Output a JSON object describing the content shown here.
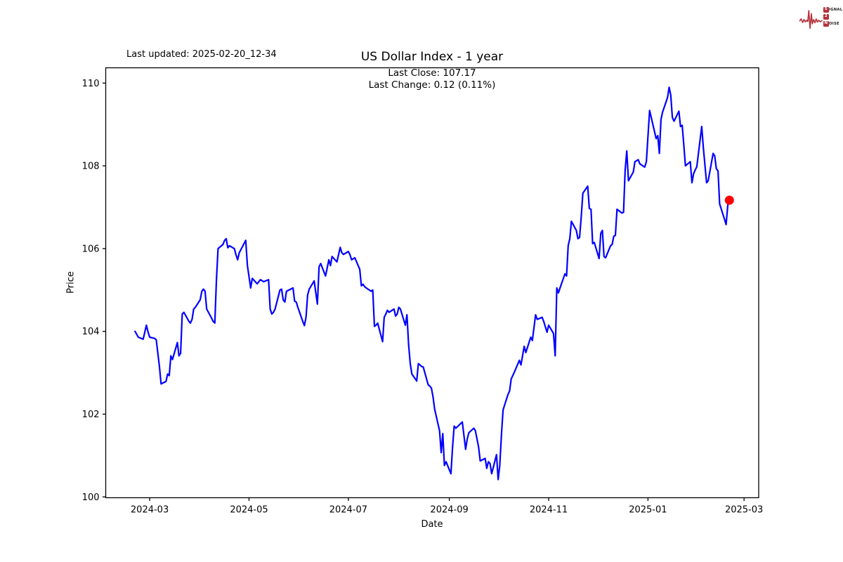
{
  "page": {
    "background": "#ffffff"
  },
  "header": {
    "last_updated": "Last updated: 2025-02-20_12-34",
    "title": "US Dollar Index - 1 year",
    "subtitle_line1": "Last Close: 107.17",
    "subtitle_line2": "Last Change: 0.12 (0.11%)"
  },
  "logo": {
    "accent": "#b5323c",
    "row1_initial": "S",
    "row1_rest": "IGNAL",
    "row2_initial": "2",
    "row2_rest": "",
    "row3_initial": "N",
    "row3_rest": "OISE"
  },
  "chart_data": {
    "type": "line",
    "title": "US Dollar Index - 1 year",
    "xlabel": "Date",
    "ylabel": "Price",
    "grid": false,
    "legend": "none",
    "line_color": "#0000ff",
    "marker_color": "#ff0000",
    "frame_color": "#000000",
    "xlim": [
      "2024-02-03",
      "2025-03-10"
    ],
    "ylim": [
      99.98,
      110.37
    ],
    "y_ticks": [
      100,
      102,
      104,
      106,
      108,
      110
    ],
    "x_ticks": [
      {
        "date": "2024-03-01",
        "label": "2024-03"
      },
      {
        "date": "2024-05-01",
        "label": "2024-05"
      },
      {
        "date": "2024-07-01",
        "label": "2024-07"
      },
      {
        "date": "2024-09-01",
        "label": "2024-09"
      },
      {
        "date": "2024-11-01",
        "label": "2024-11"
      },
      {
        "date": "2025-01-01",
        "label": "2025-01"
      },
      {
        "date": "2025-03-01",
        "label": "2025-03"
      }
    ],
    "last_point": {
      "date": "2025-02-20",
      "price": 107.17
    },
    "series": [
      {
        "name": "US Dollar Index",
        "points": [
          [
            "2024-02-21",
            104.0
          ],
          [
            "2024-02-23",
            103.86
          ],
          [
            "2024-02-26",
            103.81
          ],
          [
            "2024-02-28",
            104.15
          ],
          [
            "2024-02-29",
            103.98
          ],
          [
            "2024-03-01",
            103.86
          ],
          [
            "2024-03-04",
            103.83
          ],
          [
            "2024-03-05",
            103.8
          ],
          [
            "2024-03-06",
            103.47
          ],
          [
            "2024-03-07",
            103.14
          ],
          [
            "2024-03-08",
            102.73
          ],
          [
            "2024-03-11",
            102.79
          ],
          [
            "2024-03-12",
            102.97
          ],
          [
            "2024-03-13",
            102.93
          ],
          [
            "2024-03-14",
            103.41
          ],
          [
            "2024-03-15",
            103.32
          ],
          [
            "2024-03-18",
            103.73
          ],
          [
            "2024-03-19",
            103.41
          ],
          [
            "2024-03-20",
            103.47
          ],
          [
            "2024-03-21",
            104.42
          ],
          [
            "2024-03-22",
            104.46
          ],
          [
            "2024-03-25",
            104.25
          ],
          [
            "2024-03-26",
            104.2
          ],
          [
            "2024-03-27",
            104.29
          ],
          [
            "2024-03-28",
            104.54
          ],
          [
            "2024-03-29",
            104.58
          ],
          [
            "2024-04-01",
            104.76
          ],
          [
            "2024-04-02",
            104.97
          ],
          [
            "2024-04-03",
            105.02
          ],
          [
            "2024-04-04",
            104.97
          ],
          [
            "2024-04-05",
            104.54
          ],
          [
            "2024-04-08",
            104.32
          ],
          [
            "2024-04-09",
            104.24
          ],
          [
            "2024-04-10",
            104.2
          ],
          [
            "2024-04-11",
            105.25
          ],
          [
            "2024-04-12",
            106.0
          ],
          [
            "2024-04-15",
            106.1
          ],
          [
            "2024-04-16",
            106.2
          ],
          [
            "2024-04-17",
            106.24
          ],
          [
            "2024-04-18",
            106.02
          ],
          [
            "2024-04-19",
            106.07
          ],
          [
            "2024-04-22",
            106.0
          ],
          [
            "2024-04-23",
            105.85
          ],
          [
            "2024-04-24",
            105.73
          ],
          [
            "2024-04-25",
            105.9
          ],
          [
            "2024-04-29",
            106.2
          ],
          [
            "2024-04-30",
            105.59
          ],
          [
            "2024-05-02",
            105.05
          ],
          [
            "2024-05-03",
            105.28
          ],
          [
            "2024-05-06",
            105.15
          ],
          [
            "2024-05-08",
            105.25
          ],
          [
            "2024-05-10",
            105.2
          ],
          [
            "2024-05-13",
            105.25
          ],
          [
            "2024-05-14",
            104.54
          ],
          [
            "2024-05-15",
            104.42
          ],
          [
            "2024-05-16",
            104.46
          ],
          [
            "2024-05-17",
            104.54
          ],
          [
            "2024-05-20",
            105.0
          ],
          [
            "2024-05-21",
            105.02
          ],
          [
            "2024-05-22",
            104.76
          ],
          [
            "2024-05-23",
            104.71
          ],
          [
            "2024-05-24",
            104.97
          ],
          [
            "2024-05-28",
            105.05
          ],
          [
            "2024-05-29",
            104.73
          ],
          [
            "2024-05-30",
            104.71
          ],
          [
            "2024-05-31",
            104.58
          ],
          [
            "2024-06-03",
            104.24
          ],
          [
            "2024-06-04",
            104.14
          ],
          [
            "2024-06-05",
            104.34
          ],
          [
            "2024-06-06",
            104.88
          ],
          [
            "2024-06-07",
            105.02
          ],
          [
            "2024-06-10",
            105.22
          ],
          [
            "2024-06-12",
            104.66
          ],
          [
            "2024-06-13",
            105.56
          ],
          [
            "2024-06-14",
            105.64
          ],
          [
            "2024-06-17",
            105.34
          ],
          [
            "2024-06-18",
            105.53
          ],
          [
            "2024-06-19",
            105.73
          ],
          [
            "2024-06-20",
            105.59
          ],
          [
            "2024-06-21",
            105.81
          ],
          [
            "2024-06-24",
            105.68
          ],
          [
            "2024-06-25",
            105.86
          ],
          [
            "2024-06-26",
            106.03
          ],
          [
            "2024-06-27",
            105.9
          ],
          [
            "2024-06-28",
            105.86
          ],
          [
            "2024-07-01",
            105.93
          ],
          [
            "2024-07-02",
            105.85
          ],
          [
            "2024-07-03",
            105.73
          ],
          [
            "2024-07-05",
            105.78
          ],
          [
            "2024-07-08",
            105.5
          ],
          [
            "2024-07-09",
            105.1
          ],
          [
            "2024-07-10",
            105.14
          ],
          [
            "2024-07-11",
            105.08
          ],
          [
            "2024-07-12",
            105.05
          ],
          [
            "2024-07-15",
            104.97
          ],
          [
            "2024-07-16",
            105.0
          ],
          [
            "2024-07-17",
            104.12
          ],
          [
            "2024-07-18",
            104.15
          ],
          [
            "2024-07-19",
            104.2
          ],
          [
            "2024-07-22",
            103.75
          ],
          [
            "2024-07-23",
            104.34
          ],
          [
            "2024-07-24",
            104.42
          ],
          [
            "2024-07-25",
            104.51
          ],
          [
            "2024-07-26",
            104.46
          ],
          [
            "2024-07-29",
            104.54
          ],
          [
            "2024-07-30",
            104.37
          ],
          [
            "2024-07-31",
            104.42
          ],
          [
            "2024-08-01",
            104.58
          ],
          [
            "2024-08-02",
            104.54
          ],
          [
            "2024-08-05",
            104.15
          ],
          [
            "2024-08-06",
            104.4
          ],
          [
            "2024-08-07",
            103.69
          ],
          [
            "2024-08-08",
            103.22
          ],
          [
            "2024-08-09",
            102.97
          ],
          [
            "2024-08-12",
            102.8
          ],
          [
            "2024-08-13",
            103.22
          ],
          [
            "2024-08-14",
            103.19
          ],
          [
            "2024-08-15",
            103.15
          ],
          [
            "2024-08-16",
            103.14
          ],
          [
            "2024-08-19",
            102.71
          ],
          [
            "2024-08-20",
            102.68
          ],
          [
            "2024-08-21",
            102.63
          ],
          [
            "2024-08-22",
            102.42
          ],
          [
            "2024-08-23",
            102.12
          ],
          [
            "2024-08-26",
            101.6
          ],
          [
            "2024-08-27",
            101.07
          ],
          [
            "2024-08-28",
            101.53
          ],
          [
            "2024-08-29",
            100.76
          ],
          [
            "2024-08-30",
            100.85
          ],
          [
            "2024-09-02",
            100.56
          ],
          [
            "2024-09-03",
            101.2
          ],
          [
            "2024-09-04",
            101.71
          ],
          [
            "2024-09-05",
            101.66
          ],
          [
            "2024-09-09",
            101.81
          ],
          [
            "2024-09-11",
            101.15
          ],
          [
            "2024-09-12",
            101.4
          ],
          [
            "2024-09-13",
            101.55
          ],
          [
            "2024-09-16",
            101.66
          ],
          [
            "2024-09-17",
            101.6
          ],
          [
            "2024-09-19",
            101.2
          ],
          [
            "2024-09-20",
            100.87
          ],
          [
            "2024-09-23",
            100.93
          ],
          [
            "2024-09-24",
            100.69
          ],
          [
            "2024-09-25",
            100.85
          ],
          [
            "2024-09-26",
            100.81
          ],
          [
            "2024-09-27",
            100.56
          ],
          [
            "2024-09-30",
            101.02
          ],
          [
            "2024-10-01",
            100.42
          ],
          [
            "2024-10-02",
            100.76
          ],
          [
            "2024-10-03",
            101.5
          ],
          [
            "2024-10-04",
            102.1
          ],
          [
            "2024-10-07",
            102.47
          ],
          [
            "2024-10-08",
            102.56
          ],
          [
            "2024-10-09",
            102.85
          ],
          [
            "2024-10-11",
            103.02
          ],
          [
            "2024-10-14",
            103.3
          ],
          [
            "2024-10-15",
            103.19
          ],
          [
            "2024-10-17",
            103.64
          ],
          [
            "2024-10-18",
            103.49
          ],
          [
            "2024-10-21",
            103.86
          ],
          [
            "2024-10-22",
            103.78
          ],
          [
            "2024-10-24",
            104.4
          ],
          [
            "2024-10-25",
            104.29
          ],
          [
            "2024-10-28",
            104.34
          ],
          [
            "2024-10-29",
            104.24
          ],
          [
            "2024-10-31",
            103.98
          ],
          [
            "2024-11-01",
            104.15
          ],
          [
            "2024-11-04",
            103.95
          ],
          [
            "2024-11-05",
            103.41
          ],
          [
            "2024-11-06",
            105.05
          ],
          [
            "2024-11-07",
            104.93
          ],
          [
            "2024-11-08",
            105.05
          ],
          [
            "2024-11-11",
            105.39
          ],
          [
            "2024-11-12",
            105.34
          ],
          [
            "2024-11-13",
            106.07
          ],
          [
            "2024-11-14",
            106.24
          ],
          [
            "2024-11-15",
            106.66
          ],
          [
            "2024-11-18",
            106.44
          ],
          [
            "2024-11-19",
            106.24
          ],
          [
            "2024-11-20",
            106.27
          ],
          [
            "2024-11-21",
            106.75
          ],
          [
            "2024-11-22",
            107.34
          ],
          [
            "2024-11-25",
            107.51
          ],
          [
            "2024-11-26",
            106.97
          ],
          [
            "2024-11-27",
            106.95
          ],
          [
            "2024-11-28",
            106.12
          ],
          [
            "2024-11-29",
            106.15
          ],
          [
            "2024-12-02",
            105.76
          ],
          [
            "2024-12-03",
            106.37
          ],
          [
            "2024-12-04",
            106.44
          ],
          [
            "2024-12-05",
            105.81
          ],
          [
            "2024-12-06",
            105.78
          ],
          [
            "2024-12-09",
            106.07
          ],
          [
            "2024-12-10",
            106.1
          ],
          [
            "2024-12-11",
            106.3
          ],
          [
            "2024-12-12",
            106.32
          ],
          [
            "2024-12-13",
            106.95
          ],
          [
            "2024-12-16",
            106.86
          ],
          [
            "2024-12-17",
            106.88
          ],
          [
            "2024-12-18",
            107.9
          ],
          [
            "2024-12-19",
            108.36
          ],
          [
            "2024-12-20",
            107.64
          ],
          [
            "2024-12-23",
            107.85
          ],
          [
            "2024-12-24",
            108.1
          ],
          [
            "2024-12-26",
            108.15
          ],
          [
            "2024-12-27",
            108.05
          ],
          [
            "2024-12-30",
            107.97
          ],
          [
            "2024-12-31",
            108.1
          ],
          [
            "2025-01-02",
            109.34
          ],
          [
            "2025-01-06",
            108.66
          ],
          [
            "2025-01-07",
            108.73
          ],
          [
            "2025-01-08",
            108.3
          ],
          [
            "2025-01-09",
            109.12
          ],
          [
            "2025-01-10",
            109.3
          ],
          [
            "2025-01-13",
            109.65
          ],
          [
            "2025-01-14",
            109.9
          ],
          [
            "2025-01-15",
            109.71
          ],
          [
            "2025-01-16",
            109.17
          ],
          [
            "2025-01-17",
            109.08
          ],
          [
            "2025-01-20",
            109.32
          ],
          [
            "2025-01-21",
            108.95
          ],
          [
            "2025-01-22",
            108.98
          ],
          [
            "2025-01-23",
            108.5
          ],
          [
            "2025-01-24",
            108.0
          ],
          [
            "2025-01-27",
            108.1
          ],
          [
            "2025-01-28",
            107.59
          ],
          [
            "2025-01-29",
            107.81
          ],
          [
            "2025-01-30",
            107.9
          ],
          [
            "2025-01-31",
            107.98
          ],
          [
            "2025-02-03",
            108.95
          ],
          [
            "2025-02-04",
            108.44
          ],
          [
            "2025-02-06",
            107.59
          ],
          [
            "2025-02-07",
            107.64
          ],
          [
            "2025-02-10",
            108.3
          ],
          [
            "2025-02-11",
            108.24
          ],
          [
            "2025-02-12",
            107.93
          ],
          [
            "2025-02-13",
            107.88
          ],
          [
            "2025-02-14",
            107.08
          ],
          [
            "2025-02-17",
            106.71
          ],
          [
            "2025-02-18",
            106.58
          ],
          [
            "2025-02-19",
            107.05
          ],
          [
            "2025-02-20",
            107.17
          ]
        ]
      }
    ]
  }
}
